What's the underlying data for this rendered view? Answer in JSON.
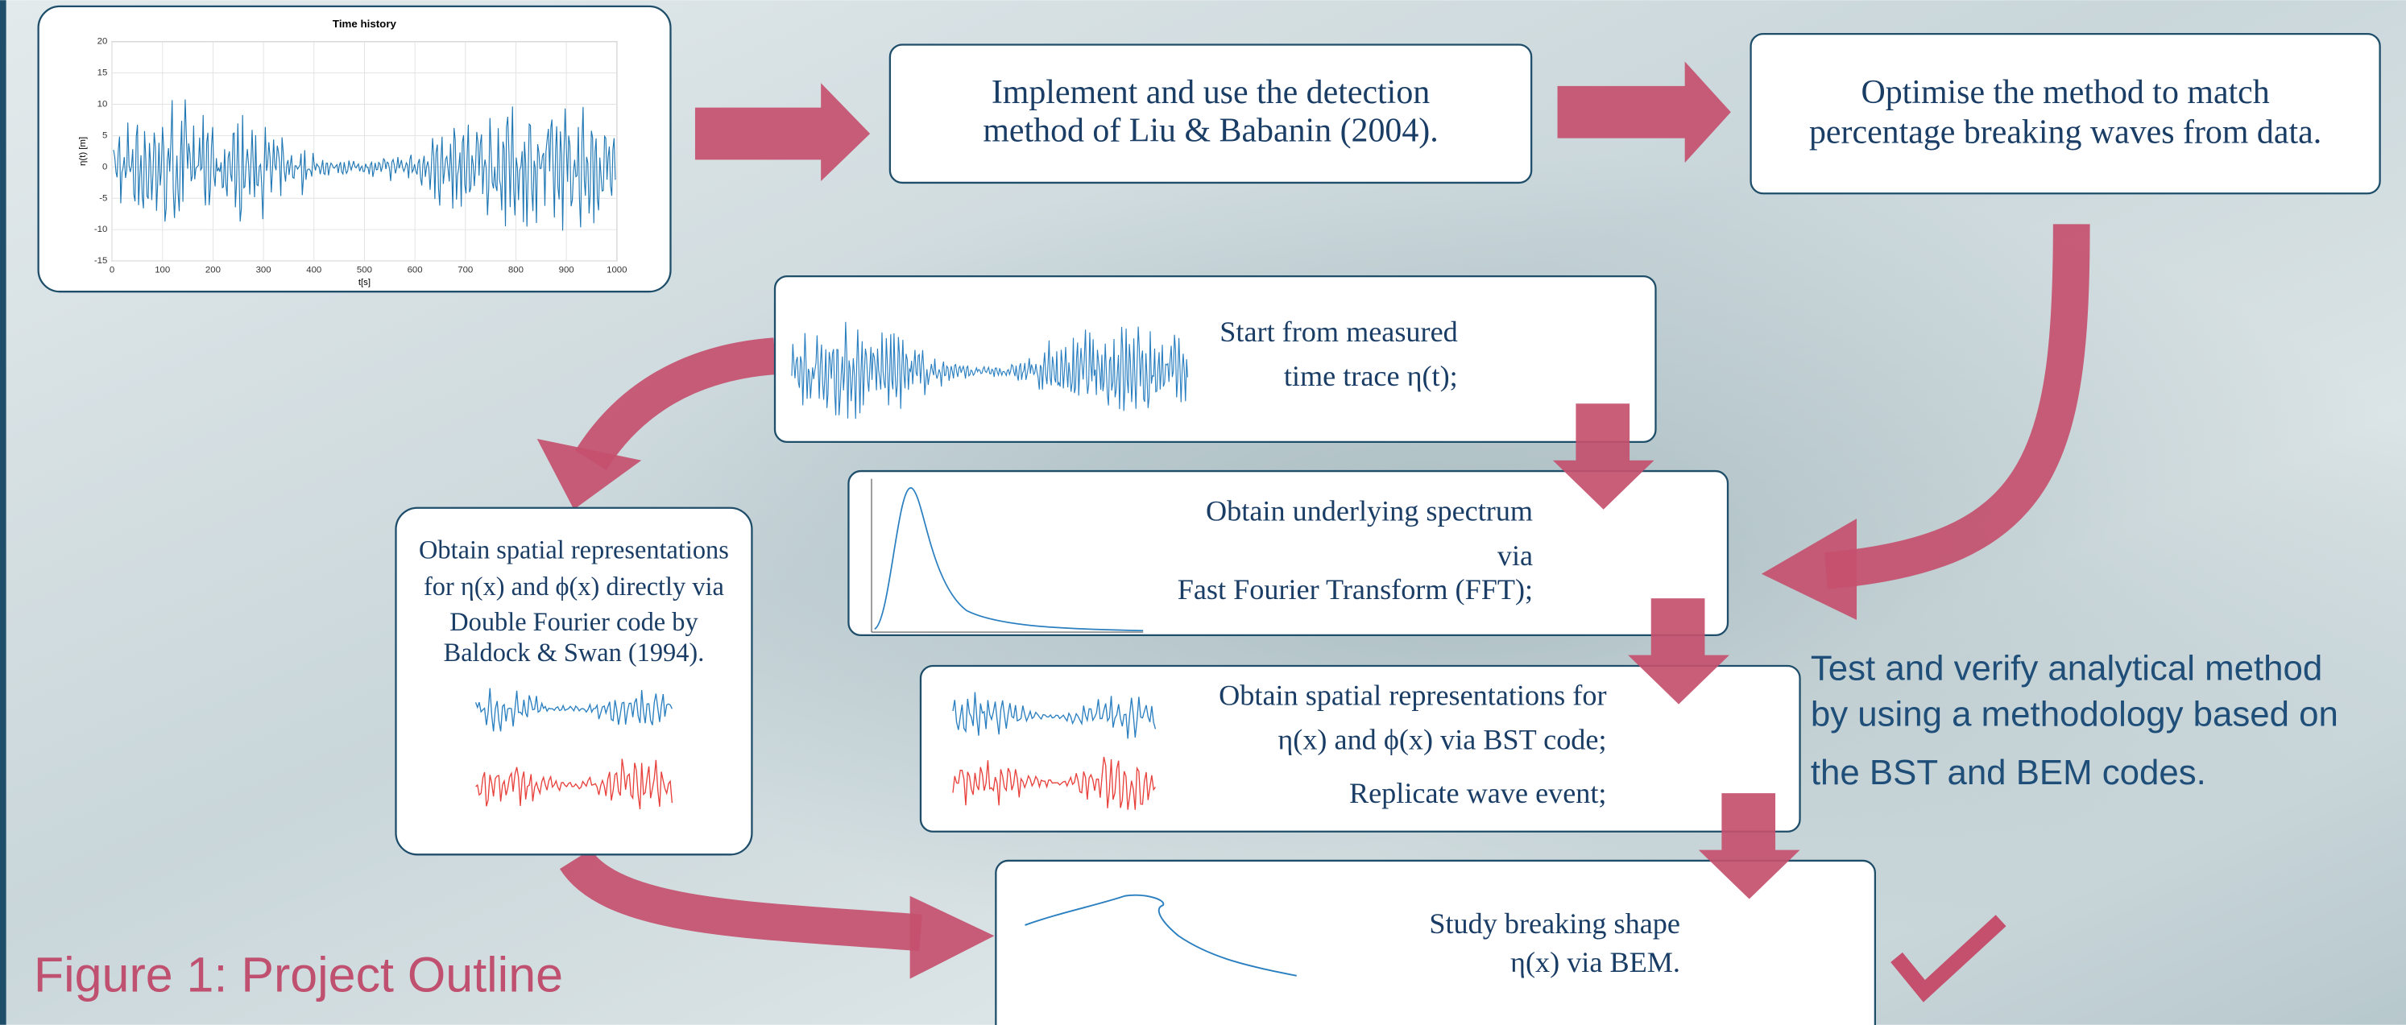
{
  "plot": {
    "title": "Time history",
    "x_label": "t[s]",
    "y_label": "η(t) [m]",
    "xlim": [
      0,
      1000
    ],
    "ylim": [
      -15,
      20
    ],
    "xticks": [
      0,
      100,
      200,
      300,
      400,
      500,
      600,
      700,
      800,
      900,
      1000
    ],
    "yticks": [
      -15,
      -10,
      -5,
      0,
      5,
      10,
      15,
      20
    ]
  },
  "steps": [
    {
      "lines": [
        "Implement and use the detection",
        "method of Liu & Babanin (2004)."
      ]
    },
    {
      "lines": [
        "Optimise the method to match",
        "percentage breaking waves from data."
      ]
    },
    {
      "lines": [
        "Start from measured",
        "time trace η(t);"
      ]
    },
    {
      "lines": [
        "Obtain underlying spectrum",
        "via",
        "Fast Fourier Transform (FFT);"
      ]
    },
    {
      "lines": [
        "Obtain spatial representations for",
        "η(x) and ϕ(x) via BST code;",
        "Replicate wave event;"
      ]
    },
    {
      "lines": [
        "Obtain spatial representations",
        "for η(x) and ϕ(x) directly via",
        "Double Fourier code by",
        "Baldock & Swan (1994)."
      ]
    },
    {
      "lines": [
        "Study breaking shape",
        "η(x) via BEM."
      ]
    }
  ],
  "side_note": {
    "lines": [
      "Test and verify analytical method",
      "by using a methodology based on",
      "the BST and BEM codes."
    ]
  },
  "caption": "Figure 1: Project Outline"
}
